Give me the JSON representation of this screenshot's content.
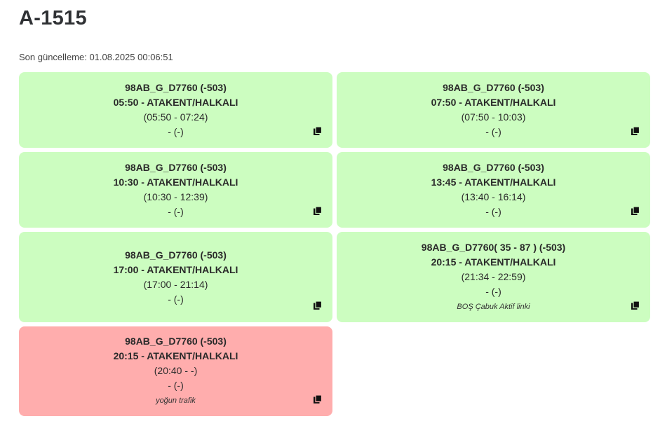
{
  "header": {
    "title": "A-1515",
    "updated": "Son güncelleme: 01.08.2025 00:06:51"
  },
  "colors": {
    "card_green": "#ccfdc0",
    "card_red": "#ffadad"
  },
  "cards": [
    {
      "vehicle": "98AB_G_D7760 (-503)",
      "trip": "05:50 - ATAKENT/HALKALI",
      "time": "(05:50 - 07:24)",
      "extra": "- (-)",
      "note": "",
      "status": "green",
      "icon": "copy-icon"
    },
    {
      "vehicle": "98AB_G_D7760 (-503)",
      "trip": "07:50 - ATAKENT/HALKALI",
      "time": "(07:50 - 10:03)",
      "extra": "- (-)",
      "note": "",
      "status": "green",
      "icon": "copy-icon"
    },
    {
      "vehicle": "98AB_G_D7760 (-503)",
      "trip": "10:30 - ATAKENT/HALKALI",
      "time": "(10:30 - 12:39)",
      "extra": "- (-)",
      "note": "",
      "status": "green",
      "icon": "copy-icon"
    },
    {
      "vehicle": "98AB_G_D7760 (-503)",
      "trip": "13:45 - ATAKENT/HALKALI",
      "time": "(13:40 - 16:14)",
      "extra": "- (-)",
      "note": "",
      "status": "green",
      "icon": "copy-icon"
    },
    {
      "vehicle": "98AB_G_D7760 (-503)",
      "trip": "17:00 - ATAKENT/HALKALI",
      "time": "(17:00 - 21:14)",
      "extra": "- (-)",
      "note": "",
      "status": "green",
      "icon": "copy-icon"
    },
    {
      "vehicle": "98AB_G_D7760( 35 - 87 ) (-503)",
      "trip": "20:15 - ATAKENT/HALKALI",
      "time": "(21:34 - 22:59)",
      "extra": "- (-)",
      "note": "BOŞ Çabuk Aktif linki",
      "status": "green",
      "icon": "copy-icon"
    },
    {
      "vehicle": "98AB_G_D7760 (-503)",
      "trip": "20:15 - ATAKENT/HALKALI",
      "time": "(20:40 - -)",
      "extra": "- (-)",
      "note": "yoğun trafik",
      "status": "red",
      "icon": "copy-icon"
    }
  ]
}
